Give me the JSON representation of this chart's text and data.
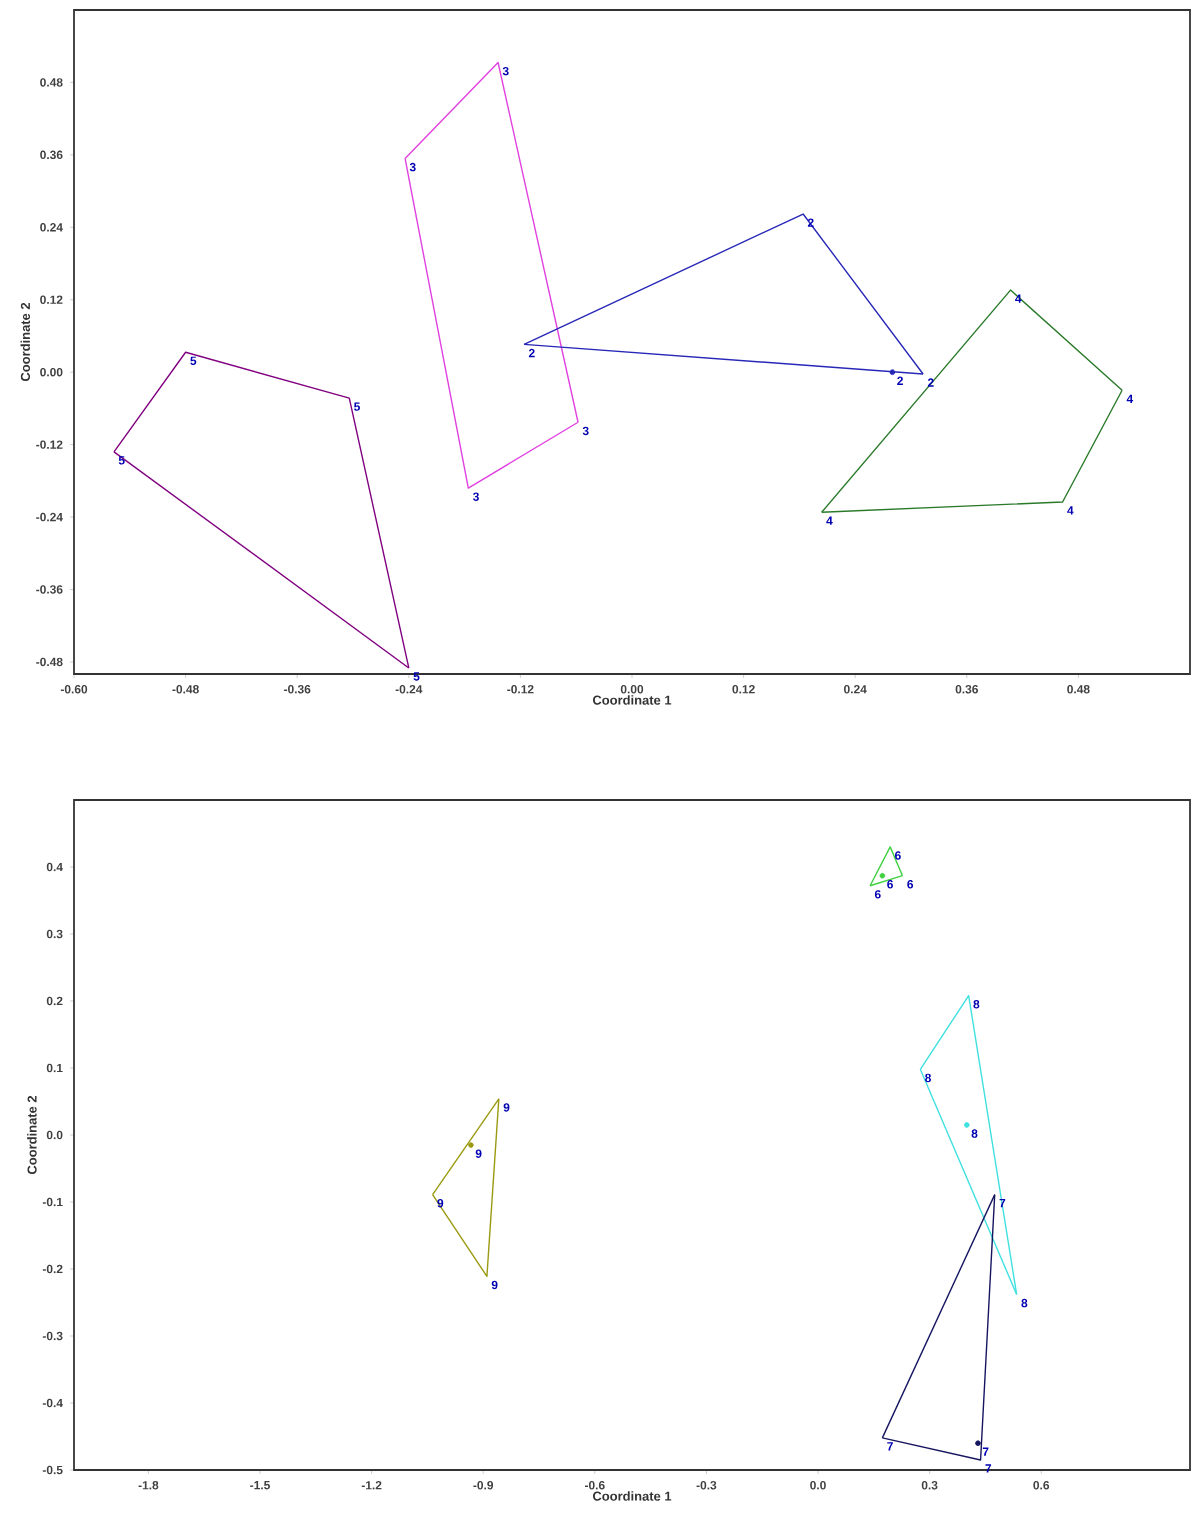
{
  "chart_data": [
    {
      "type": "line",
      "xlabel": "Coordinate 1",
      "ylabel": "Coordinate 2",
      "xlim": [
        -0.6,
        0.6
      ],
      "ylim": [
        -0.5,
        0.6
      ],
      "xticks": [
        {
          "value": -0.6,
          "label": "-0.60"
        },
        {
          "value": -0.48,
          "label": "-0.48"
        },
        {
          "value": -0.36,
          "label": "-0.36"
        },
        {
          "value": -0.24,
          "label": "-0.24"
        },
        {
          "value": -0.12,
          "label": "-0.12"
        },
        {
          "value": 0,
          "label": "0.00"
        },
        {
          "value": 0.12,
          "label": "0.12"
        },
        {
          "value": 0.24,
          "label": "0.24"
        },
        {
          "value": 0.36,
          "label": "0.36"
        },
        {
          "value": 0.48,
          "label": "0.48"
        }
      ],
      "yticks": [
        {
          "value": -0.48,
          "label": "-0.48"
        },
        {
          "value": -0.36,
          "label": "-0.36"
        },
        {
          "value": -0.24,
          "label": "-0.24"
        },
        {
          "value": -0.12,
          "label": "-0.12"
        },
        {
          "value": 0,
          "label": "0.00"
        },
        {
          "value": 0.12,
          "label": "0.12"
        },
        {
          "value": 0.24,
          "label": "0.24"
        },
        {
          "value": 0.36,
          "label": "0.36"
        },
        {
          "value": 0.48,
          "label": "0.48"
        }
      ],
      "series": [
        {
          "name": "5",
          "color": "#800080",
          "x": [
            -0.557,
            -0.48,
            -0.304,
            -0.24
          ],
          "values": [
            -0.132,
            0.033,
            -0.043,
            -0.49
          ]
        },
        {
          "name": "5",
          "color": "#800080",
          "x": [
            -0.557,
            -0.24
          ],
          "values": [
            -0.132,
            -0.49
          ]
        },
        {
          "name": "3",
          "color": "#e040e0",
          "x": [
            -0.244,
            -0.144,
            -0.058
          ],
          "values": [
            0.354,
            0.513,
            -0.083
          ]
        },
        {
          "name": "3",
          "color": "#e040e0",
          "x": [
            -0.244,
            -0.176,
            -0.058
          ],
          "values": [
            0.354,
            -0.192,
            -0.083
          ]
        },
        {
          "name": "2",
          "color": "#2828b8",
          "x": [
            -0.116,
            0.184,
            0.313
          ],
          "values": [
            0.046,
            0.262,
            -0.003
          ]
        },
        {
          "name": "2",
          "color": "#2828b8",
          "x": [
            -0.116,
            0.313
          ],
          "values": [
            0.046,
            -0.003
          ]
        },
        {
          "type": "scatter",
          "name": "2",
          "color": "#2828b8",
          "x": [
            0.28
          ],
          "values": [
            0.0
          ]
        },
        {
          "name": "4",
          "color": "#2a7a2a",
          "x": [
            0.204,
            0.407,
            0.527
          ],
          "values": [
            -0.232,
            0.136,
            -0.03
          ]
        },
        {
          "name": "4",
          "color": "#2a7a2a",
          "x": [
            0.204,
            0.463,
            0.527
          ],
          "values": [
            -0.232,
            -0.215,
            -0.03
          ]
        }
      ]
    },
    {
      "type": "line",
      "xlabel": "Coordinate 1",
      "ylabel": "Coordinate 2",
      "xlim": [
        -2.0,
        1.0
      ],
      "ylim": [
        -0.5,
        0.5
      ],
      "xticks": [
        -1.8,
        -1.5,
        -1.2,
        -0.9,
        -0.6,
        -0.3,
        {
          "value": 0,
          "label": "0.0"
        },
        0.3,
        0.6
      ],
      "yticks": [
        -0.5,
        -0.4,
        -0.3,
        -0.2,
        -0.1,
        {
          "value": 0,
          "label": "0.0"
        },
        0.1,
        0.2,
        0.3,
        0.4
      ],
      "series": [
        {
          "name": "9",
          "color": "#9a9a10",
          "x": [
            -1.036,
            -0.858
          ],
          "values": [
            -0.089,
            0.054
          ]
        },
        {
          "name": "9",
          "color": "#9a9a10",
          "x": [
            -1.036,
            -0.89,
            -0.858
          ],
          "values": [
            -0.089,
            -0.211,
            0.054
          ]
        },
        {
          "type": "scatter",
          "name": "9",
          "color": "#9a9a10",
          "x": [
            -0.933
          ],
          "values": [
            -0.015
          ]
        },
        {
          "name": "6",
          "color": "#40d040",
          "x": [
            0.14,
            0.194,
            0.227
          ],
          "values": [
            0.372,
            0.43,
            0.387
          ]
        },
        {
          "name": "6",
          "color": "#40d040",
          "x": [
            0.14,
            0.227
          ],
          "values": [
            0.372,
            0.387
          ]
        },
        {
          "type": "scatter",
          "name": "6",
          "color": "#40d040",
          "x": [
            0.173
          ],
          "values": [
            0.387
          ]
        },
        {
          "name": "8",
          "color": "#40e0e0",
          "x": [
            0.275,
            0.405,
            0.534
          ],
          "values": [
            0.098,
            0.208,
            -0.238
          ]
        },
        {
          "name": "8",
          "color": "#40e0e0",
          "x": [
            0.275,
            0.534
          ],
          "values": [
            0.098,
            -0.238
          ]
        },
        {
          "type": "scatter",
          "name": "8",
          "color": "#40e0e0",
          "x": [
            0.4
          ],
          "values": [
            0.015
          ]
        },
        {
          "name": "7",
          "color": "#151560",
          "x": [
            0.173,
            0.475
          ],
          "values": [
            -0.452,
            -0.089
          ]
        },
        {
          "name": "7",
          "color": "#151560",
          "x": [
            0.173,
            0.437,
            0.475
          ],
          "values": [
            -0.452,
            -0.485,
            -0.089
          ]
        },
        {
          "type": "scatter",
          "name": "7",
          "color": "#151560",
          "x": [
            0.43
          ],
          "values": [
            -0.46
          ]
        }
      ]
    }
  ]
}
